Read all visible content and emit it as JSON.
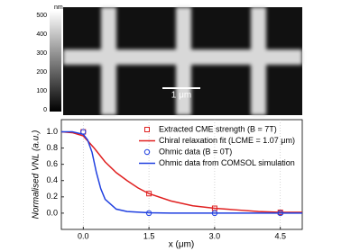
{
  "afm_image": {
    "colorbar_label": "nm",
    "colorbar_lim": [
      0,
      500
    ],
    "colorbar_ticks": [
      500,
      400,
      300,
      200,
      100,
      0
    ],
    "scale_bar": "1 μm"
  },
  "chart_data": {
    "type": "line",
    "x_label": "x (μm)",
    "y_label": "Normalised VNL (a.u.)",
    "xlim": [
      -0.5,
      5.0
    ],
    "ylim": [
      -0.2,
      1.15
    ],
    "xticks": [
      {
        "value": 0,
        "label": "0.0"
      },
      1.5,
      {
        "value": 3,
        "label": "3.0"
      },
      4.5
    ],
    "yticks": [
      {
        "value": 0,
        "label": "0.0"
      },
      0.2,
      0.4,
      0.6,
      0.8,
      {
        "value": 1,
        "label": "1.0"
      }
    ],
    "xgrid": true,
    "legend": "upper right",
    "series": [
      {
        "name": "Extracted CME strength (B = 7T)",
        "color": "#e02020",
        "mode": "square",
        "x": [
          0,
          1.5,
          3.0,
          4.5
        ],
        "values": [
          1.0,
          0.24,
          0.06,
          0.01
        ]
      },
      {
        "name": "Chiral relaxation fit (LCME = 1.07 μm)",
        "color": "#e02020",
        "mode": "line",
        "x": [
          -0.5,
          -0.25,
          0,
          0.25,
          0.5,
          0.75,
          1,
          1.25,
          1.5,
          2,
          2.5,
          3,
          3.5,
          4,
          4.5,
          5
        ],
        "values": [
          1.0,
          0.99,
          0.95,
          0.8,
          0.63,
          0.5,
          0.4,
          0.31,
          0.24,
          0.15,
          0.09,
          0.06,
          0.04,
          0.02,
          0.01,
          0.01
        ]
      },
      {
        "name": "Ohmic data (B = 0T)",
        "color": "#2040e0",
        "mode": "circle",
        "x": [
          0,
          1.5,
          3.0,
          4.5
        ],
        "values": [
          1.0,
          0.0,
          0.0,
          0.0
        ]
      },
      {
        "name": "Ohmic data from COMSOL simulation",
        "color": "#2040e0",
        "mode": "line",
        "x": [
          -0.5,
          -0.25,
          0,
          0.1,
          0.2,
          0.3,
          0.4,
          0.5,
          0.75,
          1,
          1.5,
          2,
          3,
          4,
          5
        ],
        "values": [
          1.0,
          1.0,
          0.97,
          0.9,
          0.75,
          0.5,
          0.3,
          0.17,
          0.05,
          0.02,
          0.005,
          0,
          0,
          0,
          0
        ]
      }
    ]
  }
}
